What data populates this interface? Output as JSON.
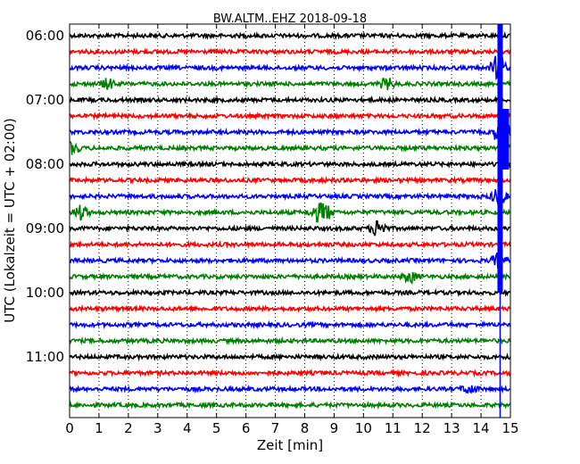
{
  "chart_data": {
    "type": "line",
    "title": "BW.ALTM..EHZ 2018-09-18",
    "xlabel": "Zeit  [min]",
    "ylabel": "UTC (Lokalzeit = UTC + 02:00)",
    "xlim": [
      0,
      15
    ],
    "x_ticks": [
      "0",
      "1",
      "2",
      "3",
      "4",
      "5",
      "6",
      "7",
      "8",
      "9",
      "10",
      "11",
      "12",
      "13",
      "14",
      "15"
    ],
    "y_ticks": [
      "06:00",
      "07:00",
      "08:00",
      "09:00",
      "10:00",
      "11:00"
    ],
    "grid": true,
    "colors": [
      "#000000",
      "#ff0000",
      "#0000ff",
      "#008000"
    ],
    "traces": [
      {
        "start": "06:00",
        "color": "#000000",
        "events": []
      },
      {
        "start": "06:15",
        "color": "#ff0000",
        "events": []
      },
      {
        "start": "06:30",
        "color": "#0000ff",
        "events": [
          {
            "t": 14.6,
            "amp": 4.0
          }
        ]
      },
      {
        "start": "06:45",
        "color": "#008000",
        "events": [
          {
            "t": 1.3,
            "amp": 1.4
          },
          {
            "t": 10.8,
            "amp": 1.6
          }
        ]
      },
      {
        "start": "07:00",
        "color": "#000000",
        "events": []
      },
      {
        "start": "07:15",
        "color": "#ff0000",
        "events": []
      },
      {
        "start": "07:30",
        "color": "#0000ff",
        "events": [
          {
            "t": 14.7,
            "amp": 5.0
          }
        ]
      },
      {
        "start": "07:45",
        "color": "#008000",
        "events": [
          {
            "t": 0.1,
            "amp": 1.6
          },
          {
            "t": 14.8,
            "amp": 2.0
          }
        ]
      },
      {
        "start": "08:00",
        "color": "#000000",
        "events": []
      },
      {
        "start": "08:15",
        "color": "#ff0000",
        "events": []
      },
      {
        "start": "08:30",
        "color": "#0000ff",
        "events": [
          {
            "t": 14.6,
            "amp": 2.5
          }
        ]
      },
      {
        "start": "08:45",
        "color": "#008000",
        "events": [
          {
            "t": 0.4,
            "amp": 2.0
          },
          {
            "t": 8.4,
            "amp": 1.8
          },
          {
            "t": 8.7,
            "amp": 2.4
          }
        ]
      },
      {
        "start": "09:00",
        "color": "#000000",
        "events": [
          {
            "t": 10.5,
            "amp": 2.6
          }
        ]
      },
      {
        "start": "09:15",
        "color": "#ff0000",
        "events": []
      },
      {
        "start": "09:30",
        "color": "#0000ff",
        "events": [
          {
            "t": 14.6,
            "amp": 2.0
          }
        ]
      },
      {
        "start": "09:45",
        "color": "#008000",
        "events": [
          {
            "t": 11.6,
            "amp": 1.6
          }
        ]
      },
      {
        "start": "10:00",
        "color": "#000000",
        "events": []
      },
      {
        "start": "10:15",
        "color": "#ff0000",
        "events": []
      },
      {
        "start": "10:30",
        "color": "#0000ff",
        "events": []
      },
      {
        "start": "10:45",
        "color": "#008000",
        "events": []
      },
      {
        "start": "11:00",
        "color": "#000000",
        "events": []
      },
      {
        "start": "11:15",
        "color": "#ff0000",
        "events": []
      },
      {
        "start": "11:30",
        "color": "#0000ff",
        "events": [
          {
            "t": 13.6,
            "amp": 1.3
          }
        ]
      },
      {
        "start": "11:45",
        "color": "#008000",
        "events": []
      }
    ],
    "spike": {
      "t": 14.65,
      "color": "#0000ff",
      "from": "06:00",
      "to": "11:45"
    }
  }
}
